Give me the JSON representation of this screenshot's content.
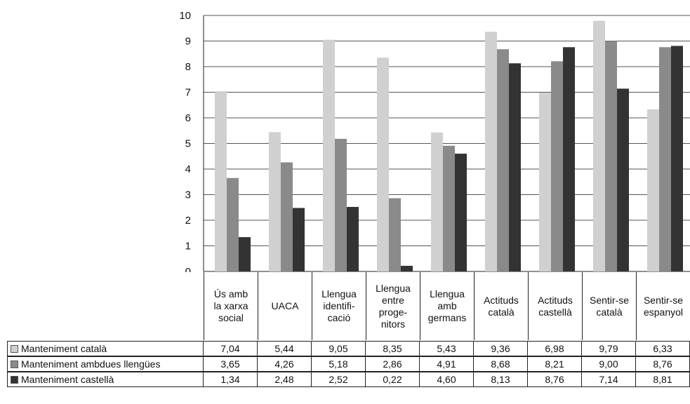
{
  "chart_data": {
    "type": "bar",
    "categories": [
      "Ús amb\nla xarxa\nsocial",
      "UACA",
      "Llengua\nidentifi-\ncació",
      "Llengua\nentre\nproge-\nnitors",
      "Llengua\namb\ngermans",
      "Actituds\ncatalà",
      "Actituds\ncastellà",
      "Sentir-se\ncatalà",
      "Sentir-se\nespanyol"
    ],
    "series": [
      {
        "name": "Manteniment català",
        "color": "#d0d0d0",
        "values": [
          7.04,
          5.44,
          9.05,
          8.35,
          5.43,
          9.36,
          6.98,
          9.79,
          6.33
        ],
        "labels": [
          "7,04",
          "5,44",
          "9,05",
          "8,35",
          "5,43",
          "9,36",
          "6,98",
          "9,79",
          "6,33"
        ]
      },
      {
        "name": "Manteniment ambdues llengües",
        "color": "#8a8a8a",
        "values": [
          3.65,
          4.26,
          5.18,
          2.86,
          4.91,
          8.68,
          8.21,
          9.0,
          8.76
        ],
        "labels": [
          "3,65",
          "4,26",
          "5,18",
          "2,86",
          "4,91",
          "8,68",
          "8,21",
          "9,00",
          "8,76"
        ]
      },
      {
        "name": "Manteniment castellà",
        "color": "#333333",
        "values": [
          1.34,
          2.48,
          2.52,
          0.22,
          4.6,
          8.13,
          8.76,
          7.14,
          8.81
        ],
        "labels": [
          "1,34",
          "2,48",
          "2,52",
          "0,22",
          "4,60",
          "8,13",
          "8,76",
          "7,14",
          "8,81"
        ]
      }
    ],
    "ylim": [
      0,
      10
    ],
    "yticks": [
      "0",
      "1",
      "2",
      "3",
      "4",
      "5",
      "6",
      "7",
      "8",
      "9",
      "10"
    ],
    "grid": true,
    "legend": "data-table-below",
    "title": "",
    "xlabel": "",
    "ylabel": ""
  }
}
